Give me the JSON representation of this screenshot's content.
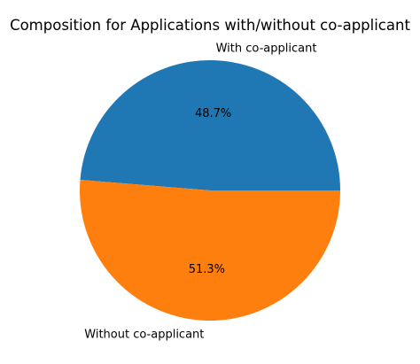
{
  "chart_data": {
    "type": "pie",
    "title": "Composition for Applications with/without co-applicant",
    "categories": [
      "With co-applicant",
      "Without co-applicant"
    ],
    "values": [
      48.7,
      51.3
    ],
    "value_labels": [
      "48.7%",
      "51.3%"
    ],
    "colors": [
      "#1f77b4",
      "#ff7f0e"
    ],
    "start_angle_deg": 0,
    "direction": "counterclockwise",
    "legend": "none"
  }
}
